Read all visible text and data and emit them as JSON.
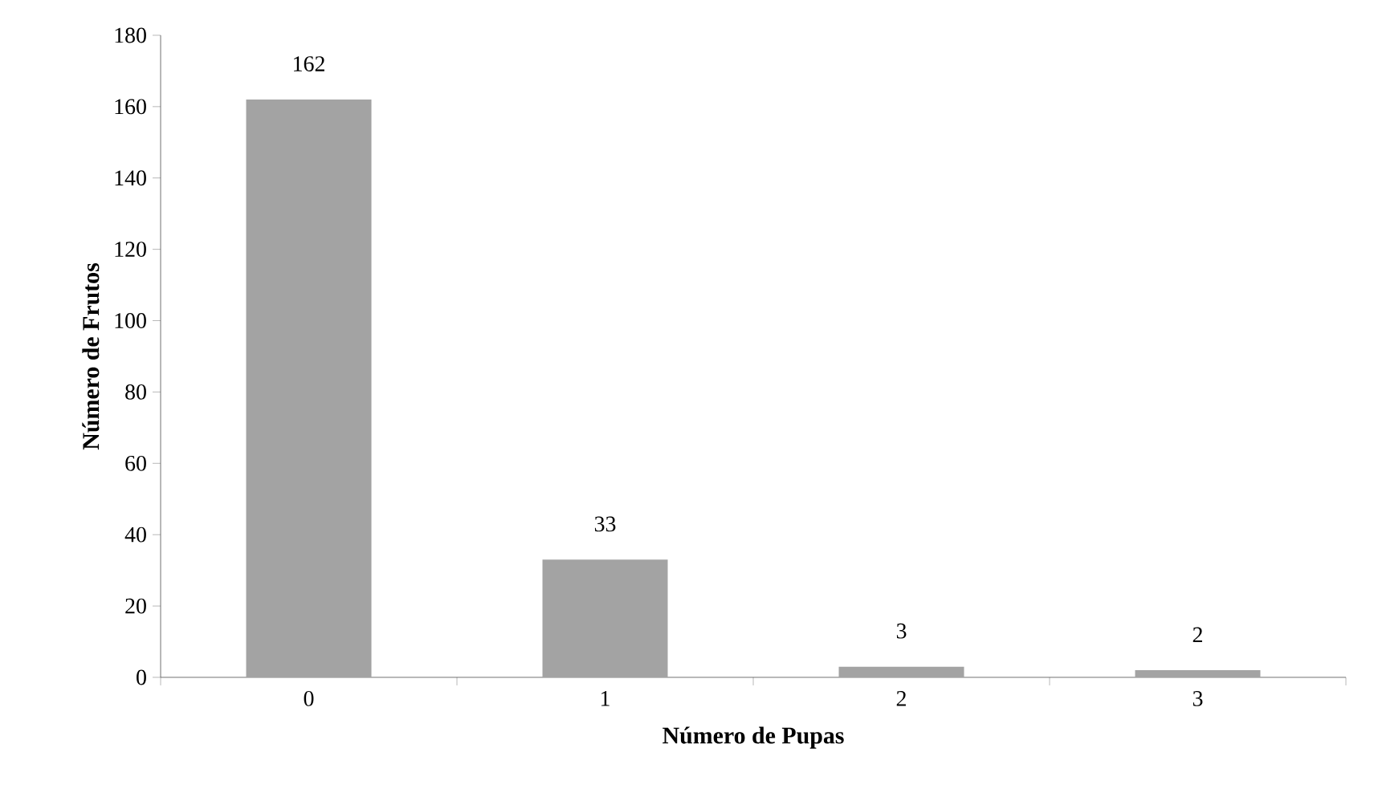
{
  "chart_data": {
    "type": "bar",
    "xlabel": "Número de Pupas",
    "ylabel": "Número de Frutos",
    "categories": [
      "0",
      "1",
      "2",
      "3"
    ],
    "values": [
      162,
      33,
      3,
      2
    ],
    "color": "#a3a3a3",
    "ylim": [
      0,
      180
    ],
    "yticks": [
      0,
      20,
      40,
      60,
      80,
      100,
      120,
      140,
      160,
      180
    ],
    "data_labels": true
  }
}
